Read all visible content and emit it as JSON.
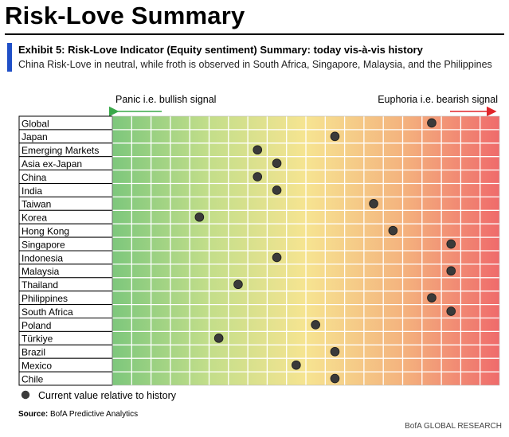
{
  "header": {
    "title": "Risk-Love Summary",
    "exhibit": "Exhibit 5: Risk-Love Indicator (Equity sentiment) Summary: today vis-à-vis history",
    "subtitle": "China Risk-Love in neutral, while froth is observed in South Africa, Singapore, Malaysia, and the Philippines"
  },
  "colors": {
    "accent": "#1f4fc7",
    "panic_arrow": "#3aa84a",
    "euphoria_arrow": "#e0262b",
    "marker": "#3a3a3a",
    "gradient": [
      "#7dc77c",
      "#c3de8a",
      "#f6e491",
      "#f4b37e",
      "#ef6b6b"
    ]
  },
  "chart_data": {
    "type": "dot-strip",
    "left_annotation": "Panic i.e. bullish signal",
    "right_annotation": "Euphoria i.e. bearish signal",
    "scale": {
      "min": 0,
      "max": 20
    },
    "legend": "Current value relative to history",
    "categories": [
      "Global",
      "Japan",
      "Emerging Markets",
      "Asia ex-Japan",
      "China",
      "India",
      "Taiwan",
      "Korea",
      "Hong Kong",
      "Singapore",
      "Indonesia",
      "Malaysia",
      "Thailand",
      "Philippines",
      "South Africa",
      "Poland",
      "Türkiye",
      "Brazil",
      "Mexico",
      "Chile"
    ],
    "values": [
      16.5,
      11.5,
      7.5,
      8.5,
      7.5,
      8.5,
      13.5,
      4.5,
      14.5,
      17.5,
      8.5,
      17.5,
      6.5,
      16.5,
      17.5,
      10.5,
      5.5,
      11.5,
      9.5,
      11.5
    ]
  },
  "footer": {
    "source_label": "Source:",
    "source_text": " BofA Predictive Analytics",
    "brand": "BofA GLOBAL RESEARCH"
  }
}
